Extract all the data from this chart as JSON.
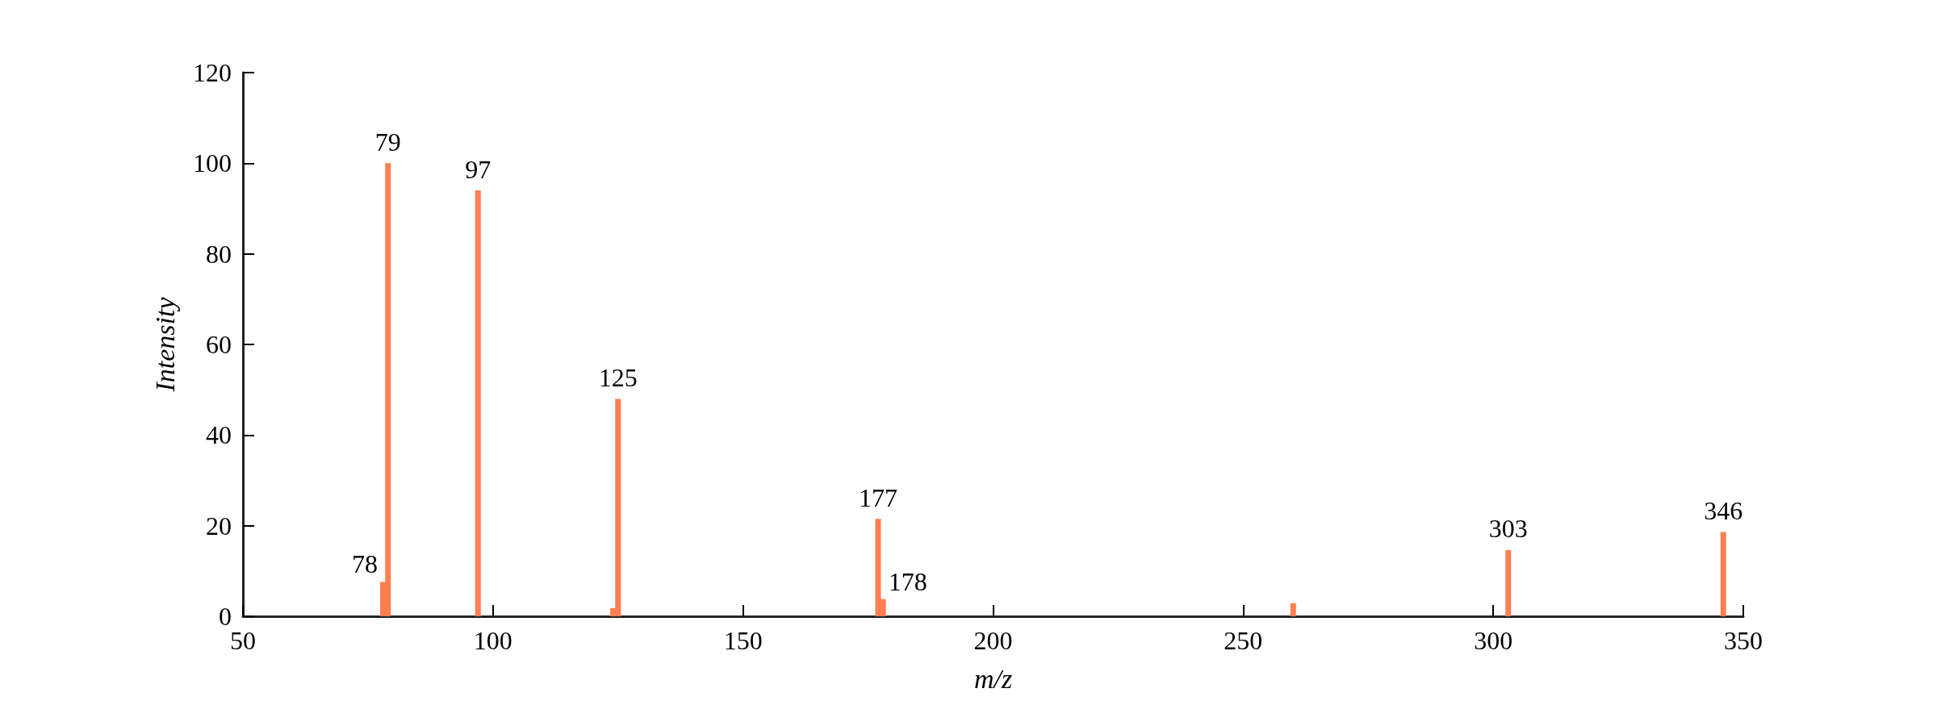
{
  "chart_data": {
    "type": "bar",
    "xlabel": "m/z",
    "ylabel": "Intensity",
    "x": [
      78,
      79,
      97,
      124,
      125,
      177,
      178,
      260,
      303,
      346
    ],
    "values": [
      7.6,
      100,
      94,
      1.8,
      48,
      21.5,
      3.8,
      2.9,
      14.6,
      18.6
    ],
    "annotations": [
      {
        "text": "78",
        "x": 78,
        "y": 7.6
      },
      {
        "text": "79",
        "x": 79,
        "y": 100
      },
      {
        "text": "97",
        "x": 97,
        "y": 94
      },
      {
        "text": "125",
        "x": 125,
        "y": 48
      },
      {
        "text": "177",
        "x": 177,
        "y": 21.5
      },
      {
        "text": "178",
        "x": 178,
        "y": 3.8
      },
      {
        "text": "303",
        "x": 303,
        "y": 14.6
      },
      {
        "text": "346",
        "x": 346,
        "y": 18.6
      }
    ],
    "color": "#ff7f50",
    "xlim": [
      50,
      350
    ],
    "xticks": [
      50,
      100,
      150,
      200,
      250,
      300,
      350
    ],
    "ylim": [
      0,
      120
    ],
    "yticks": [
      0,
      20,
      40,
      60,
      80,
      100,
      120
    ],
    "grid": false
  }
}
